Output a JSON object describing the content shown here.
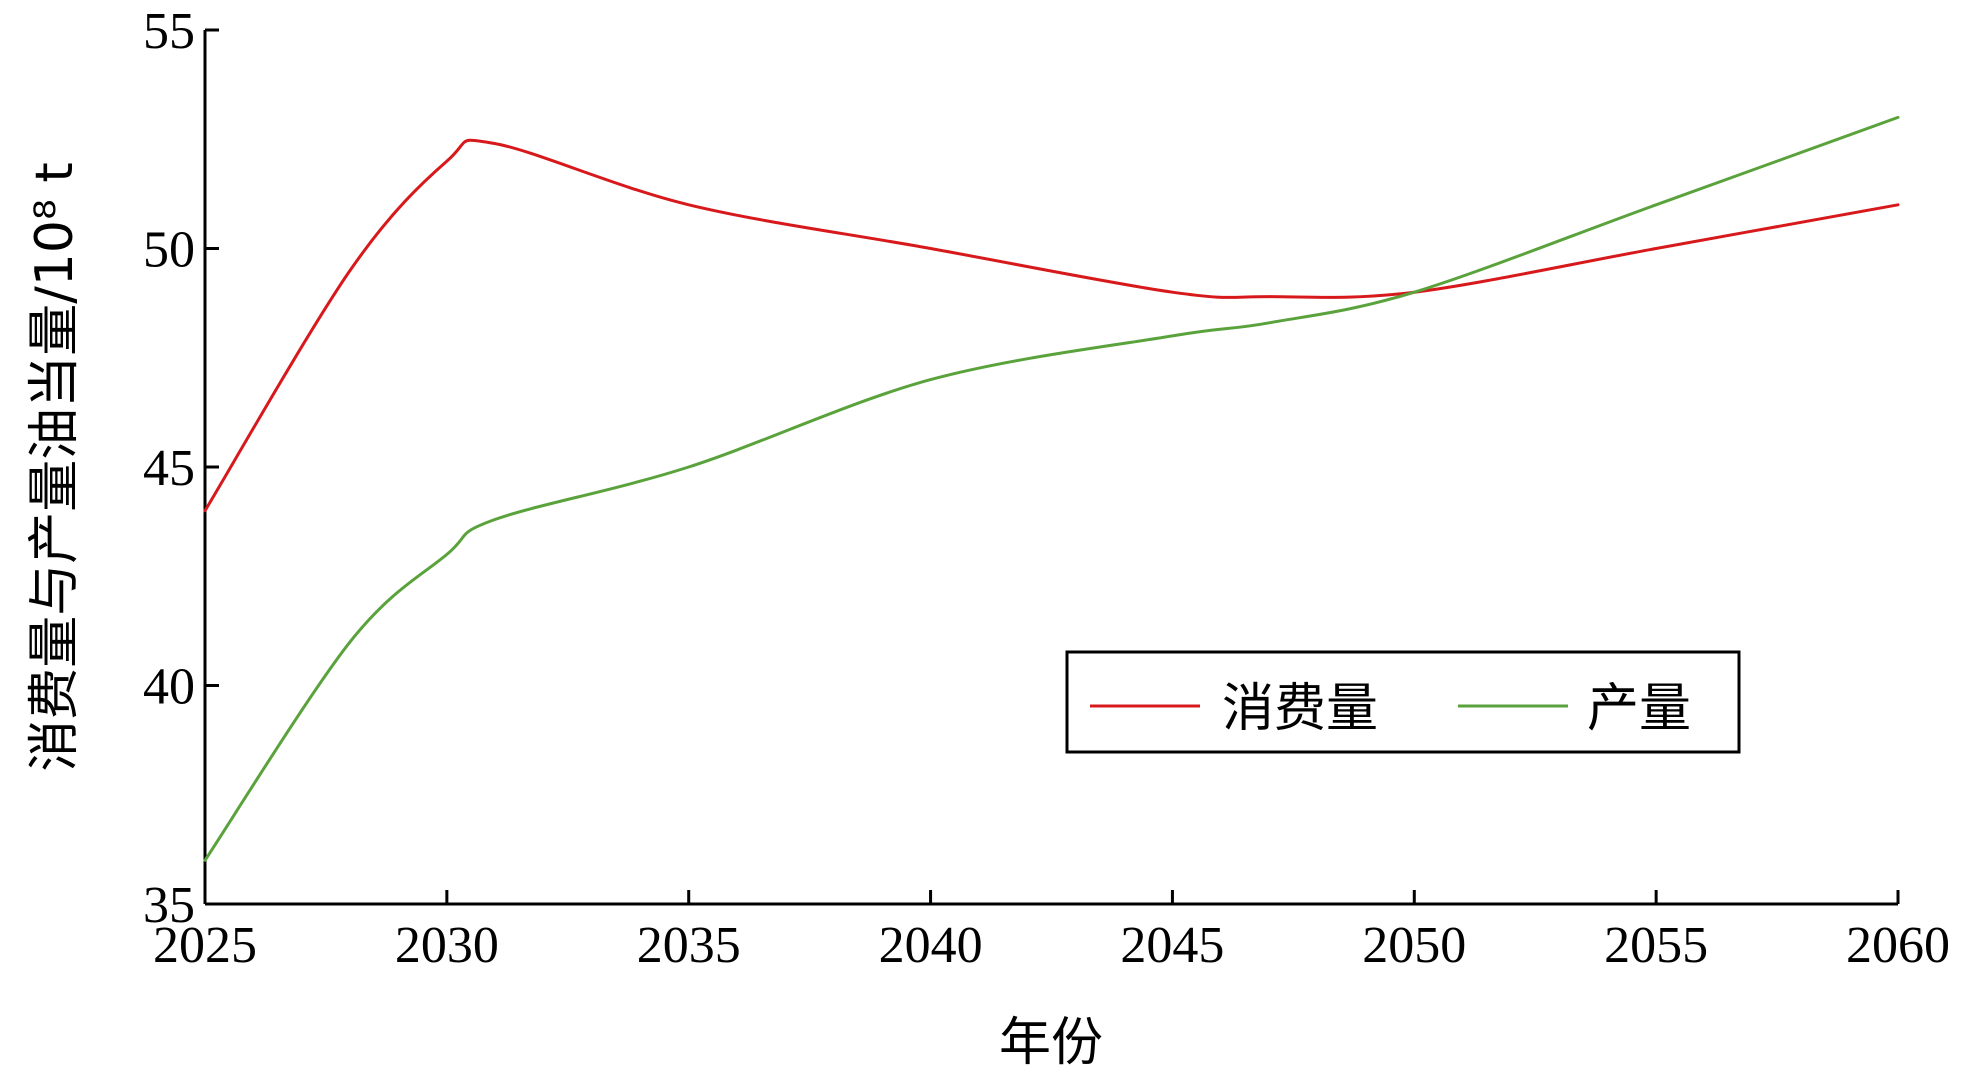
{
  "chart_data": {
    "type": "line",
    "xlabel": "年份",
    "ylabel": "消费量与产量油当量/10⁸ t",
    "xlim": [
      2025,
      2060
    ],
    "ylim": [
      35,
      55
    ],
    "x_ticks": [
      2025,
      2030,
      2035,
      2040,
      2045,
      2050,
      2055,
      2060
    ],
    "y_ticks": [
      35,
      40,
      45,
      50,
      55
    ],
    "grid": false,
    "legend_position": "bottom-right",
    "x": [
      2025,
      2028,
      2030,
      2031,
      2035,
      2040,
      2045,
      2047,
      2050,
      2055,
      2060
    ],
    "series": [
      {
        "name": "消费量",
        "color": "#d7191c",
        "values": [
          44.0,
          49.5,
          52.0,
          52.4,
          51.0,
          50.0,
          49.0,
          48.9,
          49.0,
          50.0,
          51.0
        ]
      },
      {
        "name": "产量",
        "color": "#5aa33c",
        "values": [
          36.0,
          41.0,
          43.0,
          43.8,
          45.0,
          47.0,
          48.0,
          48.3,
          49.0,
          51.0,
          53.0
        ]
      }
    ]
  }
}
